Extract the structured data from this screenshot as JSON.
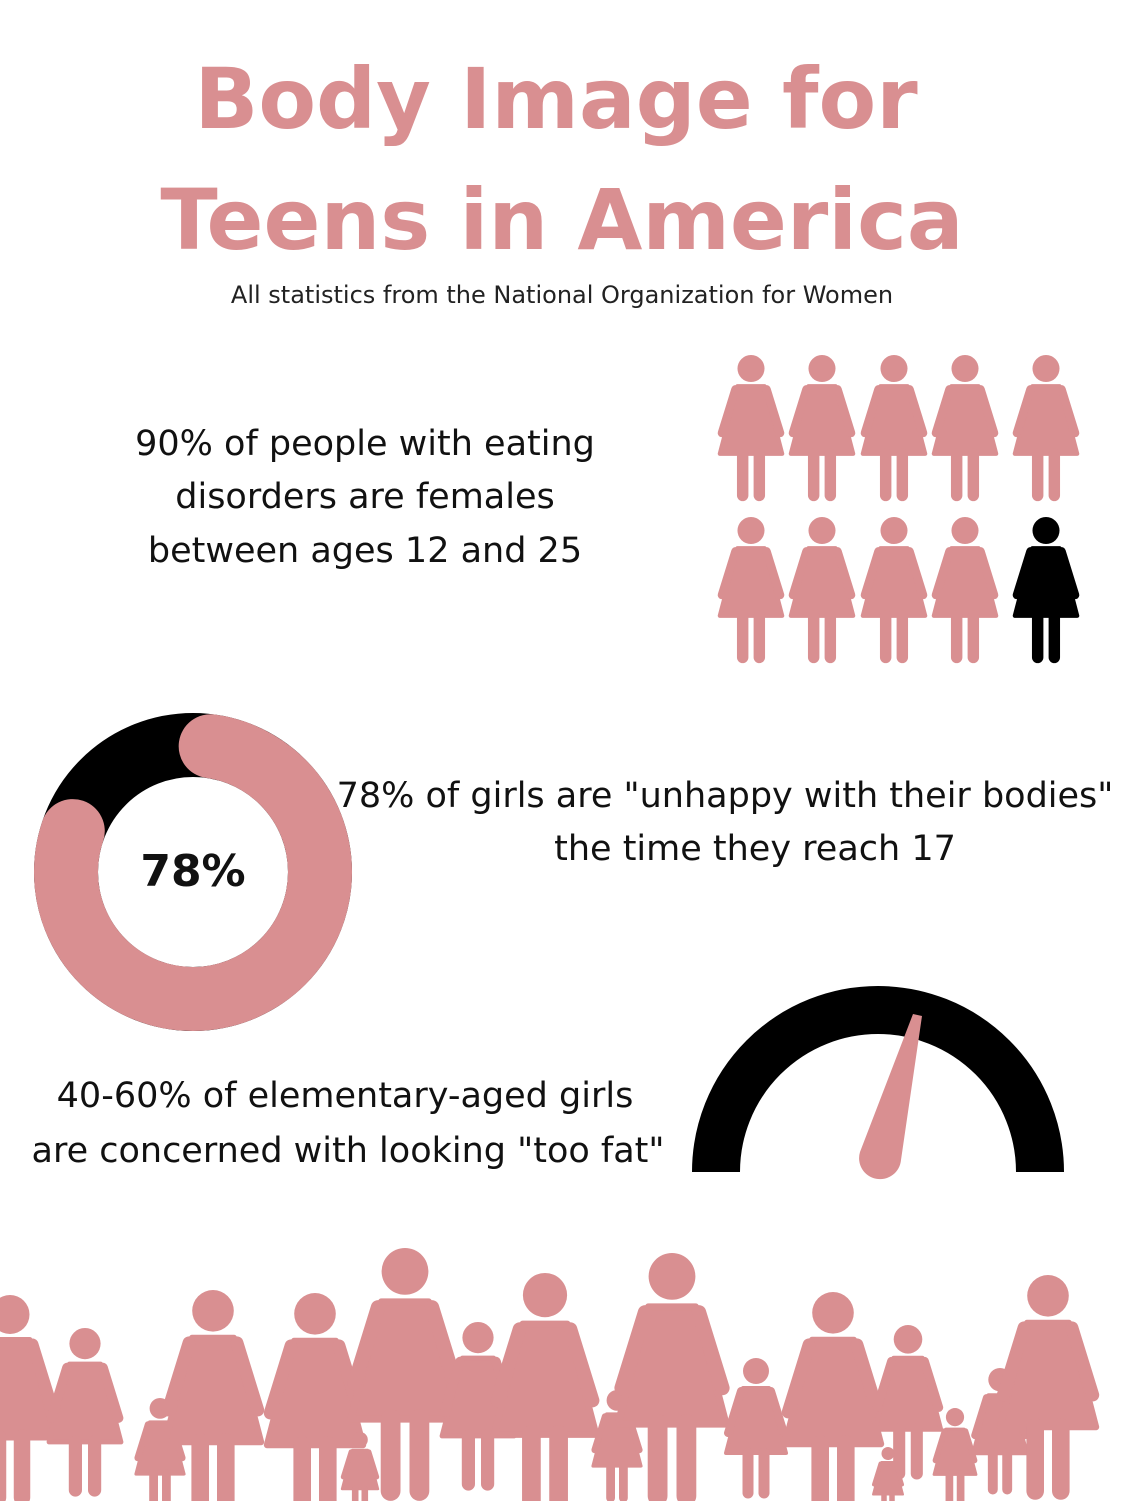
{
  "header": {
    "title_lines": [
      "Body Image for",
      "Teens in America"
    ],
    "subtitle": "All statistics from the National Organization for Women"
  },
  "stats": [
    {
      "lines": [
        "90% of people with eating",
        "disorders are females",
        "between ages 12 and 25"
      ]
    },
    {
      "lines": [
        "78% of girls are \"unhappy with their bodies\"",
        "the time they reach 17"
      ]
    },
    {
      "lines": [
        "40-60% of elementary-aged girls",
        "are concerned with looking \"too fat\""
      ]
    }
  ],
  "donut": {
    "value": 78,
    "label": "78%"
  }
}
